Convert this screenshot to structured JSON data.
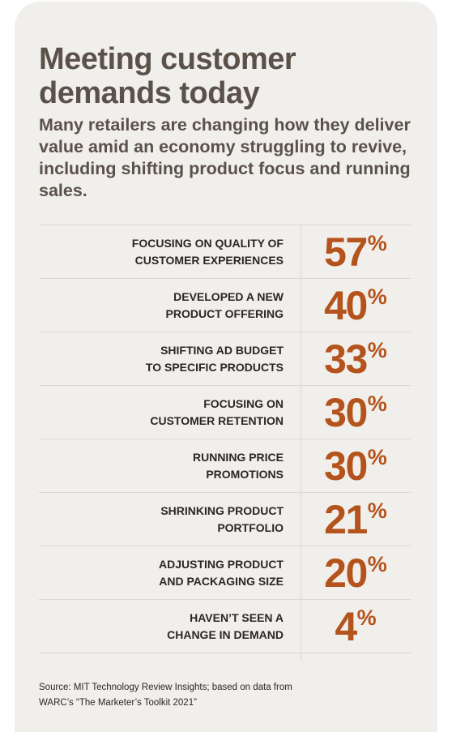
{
  "title": "Meeting customer demands today",
  "subtitle": "Many retailers are changing how they deliver value amid an economy struggling to revive, including shifting product focus and running sales.",
  "source": "Source: MIT Technology Review Insights; based on data from\nWARC’s “The Marketer’s Toolkit 2021”",
  "colors": {
    "background": "#f1efeb",
    "heading": "#5a514a",
    "label": "#2b2623",
    "value": "#b4531c",
    "rule": "#dcd7cf"
  },
  "chart_data": {
    "type": "table",
    "unit": "%",
    "rows": [
      {
        "label": "FOCUSING ON QUALITY OF\nCUSTOMER EXPERIENCES",
        "value": 57
      },
      {
        "label": "DEVELOPED A NEW\nPRODUCT OFFERING",
        "value": 40
      },
      {
        "label": "SHIFTING AD BUDGET\nTO SPECIFIC PRODUCTS",
        "value": 33
      },
      {
        "label": "FOCUSING ON\nCUSTOMER RETENTION",
        "value": 30
      },
      {
        "label": "RUNNING PRICE\nPROMOTIONS",
        "value": 30
      },
      {
        "label": "SHRINKING PRODUCT\nPORTFOLIO",
        "value": 21
      },
      {
        "label": "ADJUSTING PRODUCT\nAND PACKAGING SIZE",
        "value": 20
      },
      {
        "label": "HAVEN’T SEEN A\nCHANGE IN DEMAND",
        "value": 4
      }
    ]
  }
}
